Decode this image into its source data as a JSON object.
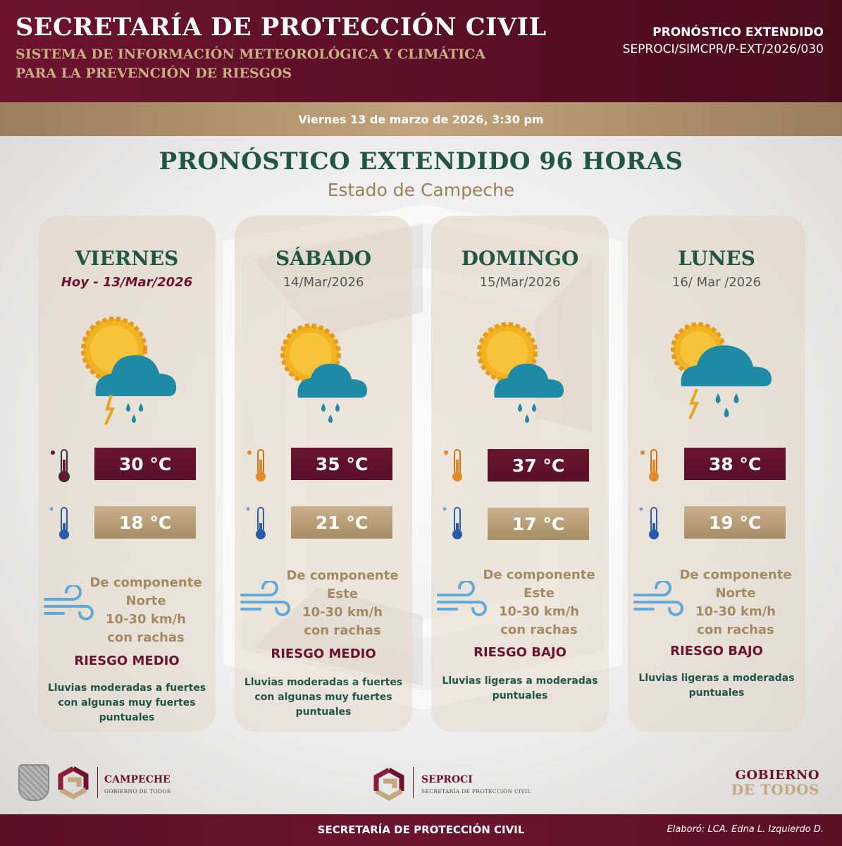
{
  "header": {
    "title": "SECRETARÍA DE PROTECCIÓN CIVIL",
    "subtitle_line1": "SISTEMA DE INFORMACIÓN METEOROLÓGICA Y CLIMÁTICA",
    "subtitle_line2": "PARA LA PREVENCIÓN DE RIESGOS",
    "report_type": "PRONÓSTICO EXTENDIDO",
    "report_code": "SEPROCI/SIMCPR/P-EXT/2026/030"
  },
  "date_band": "Viernes 13 de marzo de 2026, 3:30 pm",
  "main": {
    "title": "PRONÓSTICO EXTENDIDO 96 HORAS",
    "subtitle": "Estado de Campeche"
  },
  "days": [
    {
      "day": "VIERNES",
      "date": "Hoy - 13/Mar/2026",
      "icon": "sun-cloud-rain-lightning-icon",
      "max": "30 °C",
      "min": "18 °C",
      "wind": [
        "De componente",
        "Norte",
        "10-30 km/h",
        "con rachas"
      ],
      "risk": "RIESGO MEDIO",
      "rain": [
        "Lluvias moderadas a fuertes",
        "con algunas muy fuertes",
        "puntuales"
      ]
    },
    {
      "day": "SÁBADO",
      "date": "14/Mar/2026",
      "icon": "sun-cloud-rain-icon",
      "max": "35 °C",
      "min": "21 °C",
      "wind": [
        "De componente",
        "Este",
        "10-30 km/h",
        "con rachas"
      ],
      "risk": "RIESGO MEDIO",
      "rain": [
        "Lluvias moderadas a fuertes",
        "con algunas muy fuertes",
        "puntuales"
      ]
    },
    {
      "day": "DOMINGO",
      "date": "15/Mar/2026",
      "icon": "sun-cloud-rain-icon",
      "max": "37 °C",
      "min": "17 °C",
      "wind": [
        "De componente",
        "Este",
        "10-30 km/h",
        "con rachas"
      ],
      "risk": "RIESGO BAJO",
      "rain": [
        "Lluvias ligeras a moderadas",
        "puntuales"
      ]
    },
    {
      "day": "LUNES",
      "date": "16/ Mar /2026",
      "icon": "sun-cloud-rain-lightning-icon",
      "max": "38 °C",
      "min": "19 °C",
      "wind": [
        "De componente",
        "Norte",
        "10-30 km/h",
        "con rachas"
      ],
      "risk": "RIESGO BAJO",
      "rain": [
        "Lluvias ligeras a moderadas",
        "puntuales"
      ]
    }
  ],
  "logos": {
    "campeche_name": "CAMPECHE",
    "campeche_tag": "GOBIERNO DE TODOS",
    "seproci_name": "SEPROCI",
    "seproci_tag": "SECRETARÍA DE PROTECCIÓN CIVIL",
    "gobierno_line1": "GOBIERNO",
    "gobierno_line2": "DE TODOS"
  },
  "footer": {
    "center": "SECRETARÍA DE PROTECCIÓN CIVIL",
    "credit": "Elaboró: LCA. Edna L. Izquierdo D."
  },
  "colors": {
    "guinda": "#6d1330",
    "gold": "#c3a77e",
    "green": "#215545",
    "rain_blue": "#1f8aa6",
    "sun_yellow": "#f2b322"
  }
}
